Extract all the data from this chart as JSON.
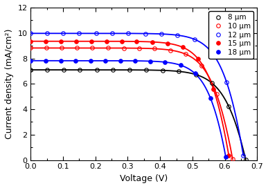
{
  "title": "",
  "xlabel": "Voltage (V)",
  "ylabel": "Current density (mA/cm²)",
  "xlim": [
    0,
    0.7
  ],
  "ylim": [
    0,
    12
  ],
  "xticks": [
    0,
    0.1,
    0.2,
    0.3,
    0.4,
    0.5,
    0.6,
    0.7
  ],
  "yticks": [
    0,
    2,
    4,
    6,
    8,
    10,
    12
  ],
  "series": [
    {
      "label": "8 μm",
      "color": "black",
      "fillstyle": "none",
      "Jsc": 7.1,
      "Voc": 0.665,
      "Rs": 2.5,
      "n_id": 1.8
    },
    {
      "label": "10 μm",
      "color": "red",
      "fillstyle": "none",
      "Jsc": 8.82,
      "Voc": 0.625,
      "Rs": 2.2,
      "n_id": 1.7
    },
    {
      "label": "12 μm",
      "color": "blue",
      "fillstyle": "none",
      "Jsc": 9.97,
      "Voc": 0.66,
      "Rs": 2.0,
      "n_id": 1.7
    },
    {
      "label": "15 μm",
      "color": "red",
      "fillstyle": "full",
      "Jsc": 9.35,
      "Voc": 0.615,
      "Rs": 2.0,
      "n_id": 1.65
    },
    {
      "label": "18 μm",
      "color": "blue",
      "fillstyle": "full",
      "Jsc": 7.82,
      "Voc": 0.605,
      "Rs": 1.8,
      "n_id": 1.6
    }
  ],
  "n_markers": 14,
  "legend_loc": "upper right",
  "figsize": [
    3.87,
    2.72
  ],
  "dpi": 100
}
